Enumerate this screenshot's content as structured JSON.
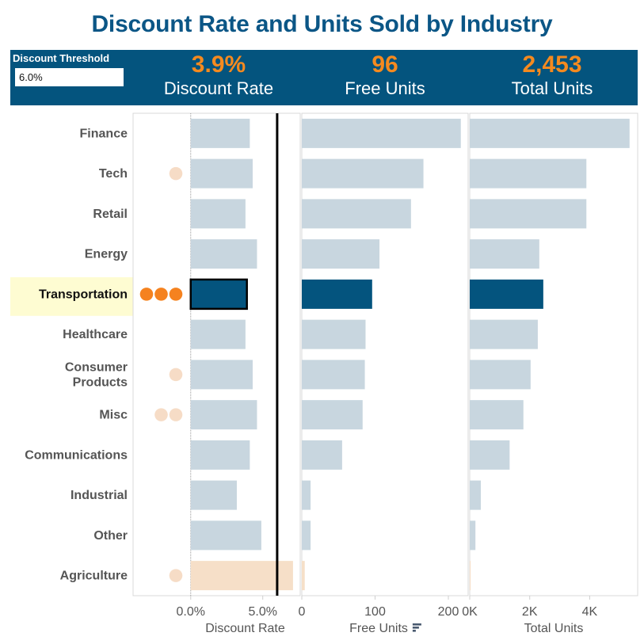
{
  "title": "Discount Rate and Units Sold by Industry",
  "controls": {
    "threshold_label": "Discount Threshold",
    "threshold_value": "6.0%"
  },
  "kpis": [
    {
      "value": "3.9%",
      "label": "Discount Rate"
    },
    {
      "value": "96",
      "label": "Free Units"
    },
    {
      "value": "2,453",
      "label": "Total Units"
    }
  ],
  "colors": {
    "title": "#0b5686",
    "band": "#04547e",
    "kpi_value": "#f58a1f",
    "bar_default": "#c8d6df",
    "bar_selected": "#04547e",
    "bar_over_threshold": "#f6dfc8",
    "dot_bright": "#f5821f",
    "dot_faded": "#f6dcc6",
    "highlight_row": "#fefcd2",
    "threshold_line": "#000000"
  },
  "chart_data": {
    "type": "bar",
    "orientation": "horizontal",
    "selected_category": "Transportation",
    "categories": [
      "Finance",
      "Tech",
      "Retail",
      "Energy",
      "Transportation",
      "Healthcare",
      "Consumer Products",
      "Misc",
      "Communications",
      "Industrial",
      "Other",
      "Agriculture"
    ],
    "category_display": [
      [
        "Finance"
      ],
      [
        "Tech"
      ],
      [
        "Retail"
      ],
      [
        "Energy"
      ],
      [
        "Transportation"
      ],
      [
        "Healthcare"
      ],
      [
        "Consumer",
        "Products"
      ],
      [
        "Misc"
      ],
      [
        "Communications"
      ],
      [
        "Industrial"
      ],
      [
        "Other"
      ],
      [
        "Agriculture"
      ]
    ],
    "indicator_dots": [
      0,
      1,
      0,
      0,
      3,
      0,
      1,
      2,
      0,
      0,
      0,
      1
    ],
    "reference_line": {
      "name": "Discount Threshold",
      "value": 6.0,
      "panel": "Discount Rate"
    },
    "panels": [
      {
        "name": "Discount Rate",
        "xlabel": "Discount Rate",
        "unit": "%",
        "xlim": [
          -4.0,
          7.6
        ],
        "ticks": [
          {
            "value": 0,
            "label": "0.0%"
          },
          {
            "value": 5,
            "label": "5.0%"
          }
        ],
        "values": [
          4.1,
          4.3,
          3.8,
          4.6,
          3.9,
          3.8,
          4.3,
          4.6,
          4.1,
          3.2,
          4.9,
          7.1
        ]
      },
      {
        "name": "Free Units",
        "xlabel": "Free Units",
        "sort_icon": "sort-descending-icon",
        "xlim": [
          0,
          227
        ],
        "ticks": [
          {
            "value": 0,
            "label": "0"
          },
          {
            "value": 100,
            "label": "100"
          },
          {
            "value": 200,
            "label": "200"
          }
        ],
        "values": [
          217,
          166,
          149,
          106,
          96,
          87,
          86,
          83,
          55,
          12,
          12,
          4
        ]
      },
      {
        "name": "Total Units",
        "xlabel": "Total Units",
        "xlim": [
          0,
          5600
        ],
        "ticks": [
          {
            "value": 0,
            "label": "0K"
          },
          {
            "value": 2000,
            "label": "2K"
          },
          {
            "value": 4000,
            "label": "4K"
          }
        ],
        "values": [
          5330,
          3890,
          3890,
          2320,
          2453,
          2270,
          2030,
          1790,
          1330,
          370,
          190,
          30
        ]
      }
    ]
  }
}
